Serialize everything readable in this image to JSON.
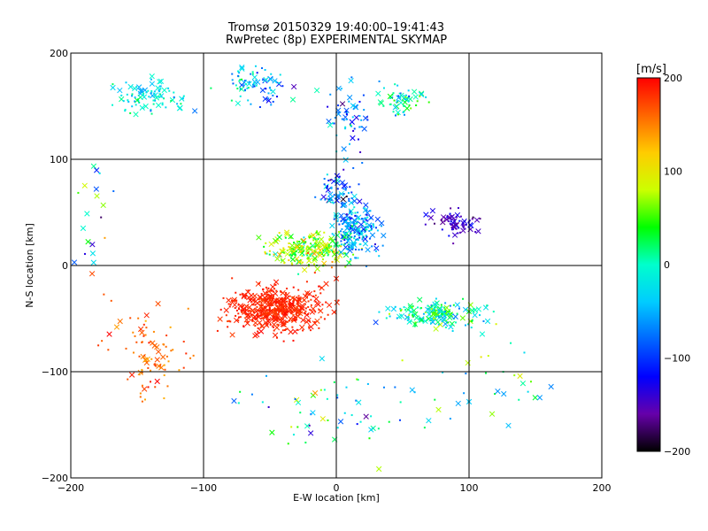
{
  "chart_data": {
    "type": "scatter",
    "title": "Tromsø 20150329 19:40:00–19:41:43",
    "subtitle": "RwPretec (8p) EXPERIMENTAL SKYMAP",
    "xlabel": "E-W location [km]",
    "ylabel": "N-S location [km]",
    "xlim": [
      -200,
      200
    ],
    "ylim": [
      -200,
      200
    ],
    "xticks": [
      -200,
      -100,
      0,
      100,
      200
    ],
    "yticks": [
      -200,
      -100,
      0,
      100,
      200
    ],
    "grid": true,
    "colorbar": {
      "label": "[m/s]",
      "range": [
        -200,
        200
      ],
      "ticks": [
        200,
        100,
        0,
        -100,
        -200
      ],
      "stops": [
        "#ff0000",
        "#ff6600",
        "#ffcc00",
        "#ccff00",
        "#00ff00",
        "#00ffcc",
        "#00ccff",
        "#0066ff",
        "#0000ff",
        "#6600aa",
        "#000000"
      ]
    },
    "markers": [
      "×",
      "·"
    ],
    "clusters": [
      {
        "center": [
          -45,
          -40
        ],
        "spread": [
          40,
          25
        ],
        "count": 500,
        "velocity": 185,
        "velocity_spread": 15
      },
      {
        "center": [
          -20,
          15
        ],
        "spread": [
          35,
          20
        ],
        "count": 230,
        "velocity": 70,
        "velocity_spread": 90
      },
      {
        "center": [
          15,
          35
        ],
        "spread": [
          20,
          30
        ],
        "count": 220,
        "velocity": -60,
        "velocity_spread": 90
      },
      {
        "center": [
          0,
          70
        ],
        "spread": [
          15,
          20
        ],
        "count": 60,
        "velocity": -80,
        "velocity_spread": 100
      },
      {
        "center": [
          75,
          -45
        ],
        "spread": [
          40,
          15
        ],
        "count": 180,
        "velocity": 10,
        "velocity_spread": 100
      },
      {
        "center": [
          90,
          40
        ],
        "spread": [
          20,
          15
        ],
        "count": 70,
        "velocity": -150,
        "velocity_spread": 40
      },
      {
        "center": [
          -140,
          160
        ],
        "spread": [
          30,
          20
        ],
        "count": 90,
        "velocity": -20,
        "velocity_spread": 60
      },
      {
        "center": [
          -60,
          170
        ],
        "spread": [
          30,
          20
        ],
        "count": 80,
        "velocity": -40,
        "velocity_spread": 100
      },
      {
        "center": [
          10,
          140
        ],
        "spread": [
          20,
          40
        ],
        "count": 60,
        "velocity": -80,
        "velocity_spread": 100
      },
      {
        "center": [
          50,
          155
        ],
        "spread": [
          20,
          15
        ],
        "count": 60,
        "velocity": 0,
        "velocity_spread": 90
      },
      {
        "center": [
          -140,
          -80
        ],
        "spread": [
          35,
          50
        ],
        "count": 90,
        "velocity": 160,
        "velocity_spread": 40
      },
      {
        "center": [
          0,
          -130
        ],
        "spread": [
          120,
          50
        ],
        "count": 70,
        "velocity": 0,
        "velocity_spread": 160
      },
      {
        "center": [
          -180,
          50
        ],
        "spread": [
          15,
          70
        ],
        "count": 20,
        "velocity": 0,
        "velocity_spread": 160
      },
      {
        "center": [
          130,
          -100
        ],
        "spread": [
          40,
          60
        ],
        "count": 25,
        "velocity": 0,
        "velocity_spread": 160
      }
    ]
  }
}
